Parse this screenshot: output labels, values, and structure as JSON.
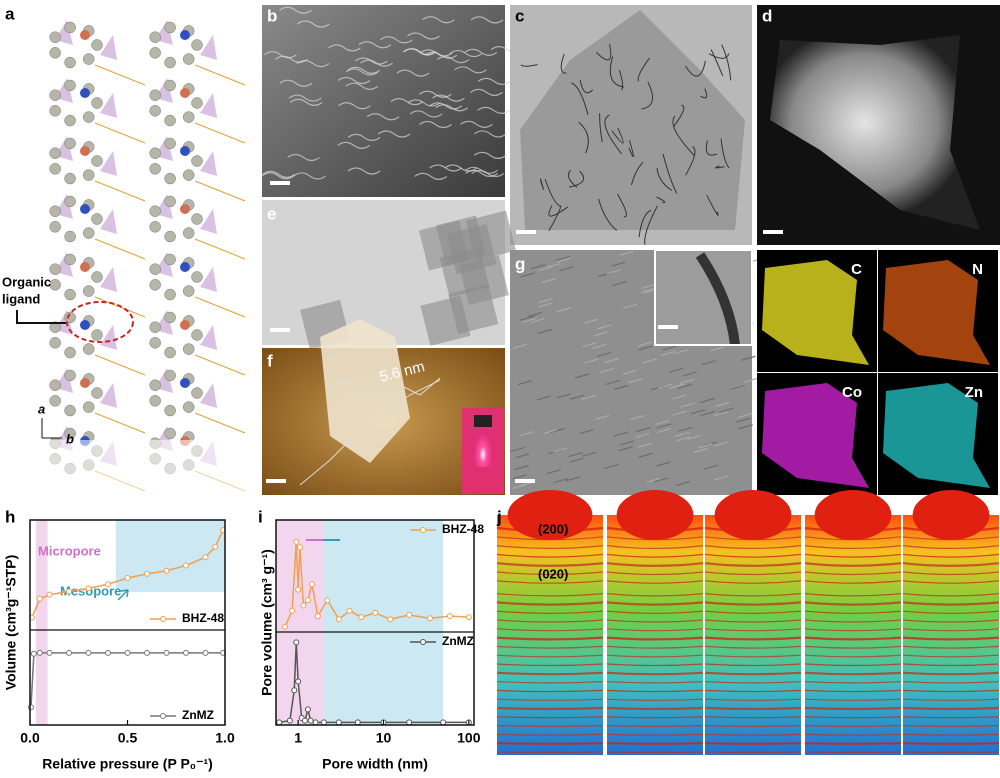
{
  "panel_labels": [
    "a",
    "b",
    "c",
    "d",
    "e",
    "f",
    "g",
    "h",
    "i",
    "j"
  ],
  "panel_a": {
    "annotation": [
      "Organic",
      "ligand"
    ],
    "axes": [
      "a",
      "b"
    ]
  },
  "panel_f": {
    "height_label": "5.6 nm"
  },
  "panel_maps": {
    "elements": [
      "C",
      "N",
      "Co",
      "Zn"
    ]
  },
  "panel_j": {
    "reflections": [
      "(200)",
      "(020)"
    ]
  },
  "chart_data": [
    {
      "type": "line",
      "xlabel": "Relative pressure (P P₀⁻¹)",
      "ylabel": "Volume (cm³g⁻¹STP)",
      "xlim": [
        0,
        1.0
      ],
      "xticks": [
        {
          "value": 0,
          "label": "0.0"
        },
        0.5,
        {
          "value": 1,
          "label": "1.0"
        }
      ],
      "shaded": [
        {
          "label": "Micropore",
          "xrange": [
            0.03,
            0.09
          ],
          "color": "#f2d6ee"
        },
        {
          "label": "Mesopore",
          "xrange": [
            0.44,
            1.0
          ],
          "color": "#cce8f2"
        }
      ],
      "series": [
        {
          "name": "BHZ-48",
          "color": "#f0a050",
          "ylim": [
            0,
            100
          ],
          "x": [
            0.01,
            0.05,
            0.1,
            0.2,
            0.3,
            0.4,
            0.5,
            0.6,
            0.7,
            0.8,
            0.9,
            0.95,
            0.99
          ],
          "values": [
            12,
            30,
            34,
            37,
            40,
            44,
            50,
            54,
            57,
            62,
            70,
            80,
            96
          ]
        },
        {
          "name": "ZnMZ",
          "color": "#777777",
          "ylim": [
            0,
            100
          ],
          "x": [
            0.005,
            0.02,
            0.05,
            0.1,
            0.2,
            0.3,
            0.4,
            0.5,
            0.6,
            0.7,
            0.8,
            0.9,
            0.99
          ],
          "values": [
            20,
            80,
            81,
            81,
            81,
            81,
            81,
            81,
            81,
            81,
            81,
            81,
            81
          ]
        }
      ]
    },
    {
      "type": "line",
      "xlabel": "Pore width (nm)",
      "ylabel": "Pore volume (cm³ g⁻¹)",
      "xlog": true,
      "xlim": [
        0.55,
        115
      ],
      "xticks": [
        1,
        10,
        100
      ],
      "shaded": [
        {
          "xrange": [
            0.55,
            2
          ],
          "color": "#f2d6ee"
        },
        {
          "xrange": [
            2,
            50
          ],
          "color": "#cce8f2"
        }
      ],
      "series": [
        {
          "name": "BHZ-48",
          "color": "#f0a050",
          "ylim": [
            0,
            100
          ],
          "x": [
            0.7,
            0.85,
            0.95,
            1.0,
            1.05,
            1.15,
            1.3,
            1.45,
            1.7,
            2.2,
            3,
            4,
            5.5,
            8,
            12,
            20,
            35,
            60,
            100
          ],
          "values": [
            5,
            20,
            85,
            40,
            80,
            25,
            30,
            45,
            15,
            30,
            12,
            20,
            14,
            18,
            12,
            16,
            13,
            15,
            14
          ]
        },
        {
          "name": "ZnMZ",
          "color": "#555555",
          "ylim": [
            0,
            100
          ],
          "x": [
            0.6,
            0.8,
            0.9,
            0.95,
            1.0,
            1.1,
            1.2,
            1.3,
            1.4,
            1.6,
            2,
            3,
            5,
            10,
            20,
            50,
            100
          ],
          "values": [
            3,
            5,
            40,
            95,
            50,
            8,
            5,
            18,
            5,
            3,
            3,
            3,
            3,
            3,
            3,
            3,
            3
          ]
        }
      ]
    }
  ]
}
